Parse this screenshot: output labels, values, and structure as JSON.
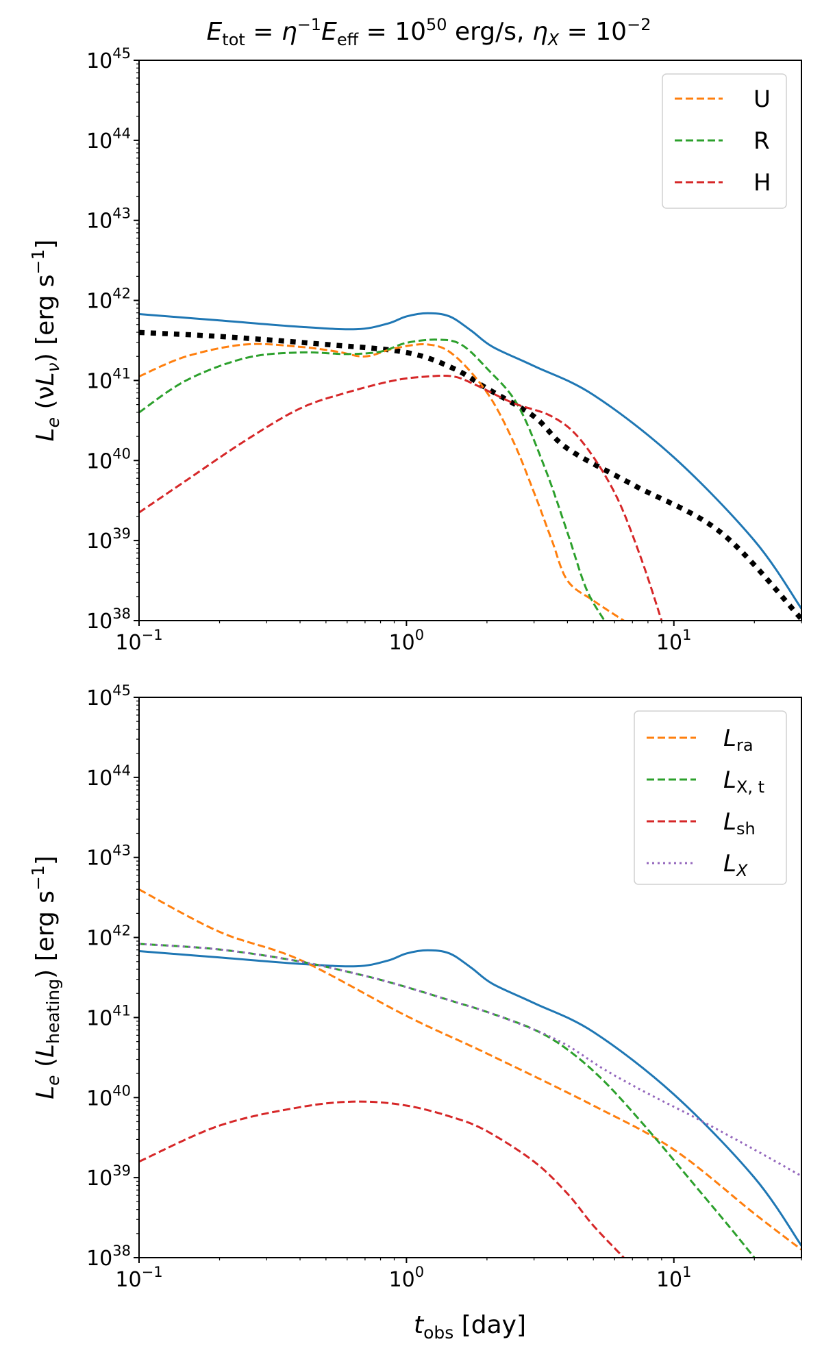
{
  "chart_data": [
    {
      "type": "line",
      "title": "E_tot = η⁻¹E_eff = 10⁵⁰ erg/s,  η_X = 10⁻²",
      "xlabel": "",
      "ylabel": "L_e (νL_ν) [erg s⁻¹]",
      "xscale": "log",
      "yscale": "log",
      "xlim": [
        0.1,
        30
      ],
      "ylim": [
        1e+38,
        1e+45
      ],
      "xticks": [
        {
          "base": "10",
          "exp": "−1",
          "value": 0.1
        },
        {
          "base": "10",
          "exp": "0",
          "value": 1
        },
        {
          "base": "10",
          "exp": "1",
          "value": 10
        }
      ],
      "yticks": [
        {
          "base": "10",
          "exp": "38",
          "value": 38
        },
        {
          "base": "10",
          "exp": "39",
          "value": 39
        },
        {
          "base": "10",
          "exp": "40",
          "value": 40
        },
        {
          "base": "10",
          "exp": "41",
          "value": 41
        },
        {
          "base": "10",
          "exp": "42",
          "value": 42
        },
        {
          "base": "10",
          "exp": "43",
          "value": 43
        },
        {
          "base": "10",
          "exp": "44",
          "value": 44
        },
        {
          "base": "10",
          "exp": "45",
          "value": 45
        }
      ],
      "legend_position": "top-right",
      "series": [
        {
          "name": "total",
          "legend": false,
          "style": "solid",
          "color": "#1f77b4",
          "x": [
            0.1,
            0.2,
            0.4,
            0.65,
            0.85,
            1.0,
            1.2,
            1.45,
            1.75,
            2.1,
            3.0,
            5.0,
            10,
            20,
            30
          ],
          "y": [
            41.83,
            41.75,
            41.67,
            41.64,
            41.71,
            41.8,
            41.84,
            41.8,
            41.62,
            41.42,
            41.18,
            40.82,
            40.04,
            39.0,
            38.15
          ]
        },
        {
          "name": "black",
          "legend": false,
          "style": "dotted-thick",
          "color": "#000000",
          "x": [
            0.1,
            0.2,
            0.5,
            1.0,
            1.5,
            2.0,
            3.0,
            4.0,
            7.0,
            15,
            30
          ],
          "y": [
            41.6,
            41.55,
            41.45,
            41.35,
            41.15,
            40.9,
            40.55,
            40.15,
            39.7,
            39.1,
            38.02
          ]
        },
        {
          "name": "U",
          "legend": true,
          "style": "dashed",
          "color": "#ff7f0e",
          "x": [
            0.1,
            0.15,
            0.25,
            0.4,
            0.55,
            0.7,
            0.9,
            1.2,
            1.5,
            2.0,
            2.5,
            3.0,
            3.5,
            4.0,
            5.0,
            6.5
          ],
          "y": [
            41.05,
            41.3,
            41.45,
            41.42,
            41.36,
            41.3,
            41.4,
            41.45,
            41.32,
            40.85,
            40.25,
            39.6,
            39.0,
            38.5,
            38.25,
            38.0
          ]
        },
        {
          "name": "R",
          "legend": true,
          "style": "dashed",
          "color": "#2ca02c",
          "x": [
            0.1,
            0.15,
            0.25,
            0.4,
            0.6,
            0.8,
            1.0,
            1.3,
            1.6,
            2.0,
            2.6,
            3.3,
            4.0,
            4.7,
            5.5
          ],
          "y": [
            40.6,
            41.0,
            41.28,
            41.35,
            41.33,
            41.36,
            41.47,
            41.51,
            41.45,
            41.15,
            40.7,
            39.9,
            39.1,
            38.4,
            38.0
          ]
        },
        {
          "name": "H",
          "legend": true,
          "style": "dashed",
          "color": "#d62728",
          "x": [
            0.1,
            0.15,
            0.25,
            0.4,
            0.6,
            0.9,
            1.2,
            1.5,
            1.8,
            2.5,
            3.5,
            4.5,
            6.0,
            7.5,
            9.0
          ],
          "y": [
            39.35,
            39.75,
            40.25,
            40.65,
            40.85,
            41.0,
            41.05,
            41.05,
            40.95,
            40.72,
            40.55,
            40.25,
            39.6,
            38.8,
            38.0
          ]
        }
      ]
    },
    {
      "type": "line",
      "title": "",
      "xlabel": "t_obs [day]",
      "ylabel": "L_e (L_heating) [erg s⁻¹]",
      "xscale": "log",
      "yscale": "log",
      "xlim": [
        0.1,
        30
      ],
      "ylim": [
        1e+38,
        1e+45
      ],
      "xticks": [
        {
          "base": "10",
          "exp": "−1",
          "value": 0.1
        },
        {
          "base": "10",
          "exp": "0",
          "value": 1
        },
        {
          "base": "10",
          "exp": "1",
          "value": 10
        }
      ],
      "yticks": [
        {
          "base": "10",
          "exp": "38",
          "value": 38
        },
        {
          "base": "10",
          "exp": "39",
          "value": 39
        },
        {
          "base": "10",
          "exp": "40",
          "value": 40
        },
        {
          "base": "10",
          "exp": "41",
          "value": 41
        },
        {
          "base": "10",
          "exp": "42",
          "value": 42
        },
        {
          "base": "10",
          "exp": "43",
          "value": 43
        },
        {
          "base": "10",
          "exp": "44",
          "value": 44
        },
        {
          "base": "10",
          "exp": "45",
          "value": 45
        }
      ],
      "legend_position": "top-right",
      "series": [
        {
          "name": "total",
          "legend": false,
          "style": "solid",
          "color": "#1f77b4",
          "x": [
            0.1,
            0.2,
            0.4,
            0.65,
            0.85,
            1.0,
            1.2,
            1.45,
            1.75,
            2.1,
            3.0,
            5.0,
            10,
            20,
            30
          ],
          "y": [
            41.83,
            41.75,
            41.67,
            41.64,
            41.71,
            41.8,
            41.84,
            41.8,
            41.62,
            41.42,
            41.18,
            40.82,
            40.04,
            39.0,
            38.15
          ]
        },
        {
          "name": "L_ra",
          "legend": true,
          "style": "dashed",
          "color": "#ff7f0e",
          "x": [
            0.1,
            0.2,
            0.4,
            1.0,
            2.0,
            5.0,
            10,
            20,
            30
          ],
          "y": [
            42.6,
            42.07,
            41.72,
            41.02,
            40.55,
            39.9,
            39.35,
            38.55,
            38.1
          ]
        },
        {
          "name": "L_X,t",
          "legend": true,
          "style": "dashed",
          "color": "#2ca02c",
          "x": [
            0.1,
            0.2,
            0.4,
            0.7,
            1.0,
            1.5,
            2.0,
            3.0,
            4.0,
            5.5,
            8.0,
            12,
            16,
            20
          ],
          "y": [
            41.92,
            41.85,
            41.7,
            41.52,
            41.38,
            41.2,
            41.07,
            40.85,
            40.6,
            40.2,
            39.6,
            38.9,
            38.4,
            38.0
          ]
        },
        {
          "name": "L_sh",
          "legend": true,
          "style": "dashed",
          "color": "#d62728",
          "x": [
            0.1,
            0.2,
            0.4,
            0.65,
            1.0,
            1.5,
            2.0,
            3.0,
            4.0,
            5.0,
            6.5
          ],
          "y": [
            39.2,
            39.65,
            39.88,
            39.95,
            39.9,
            39.75,
            39.58,
            39.2,
            38.8,
            38.4,
            38.0
          ]
        },
        {
          "name": "L_X",
          "legend": true,
          "style": "dotted",
          "color": "#9467bd",
          "x": [
            0.1,
            0.2,
            0.4,
            0.7,
            1.0,
            1.5,
            2.0,
            3.0,
            4.0,
            5.5,
            8.0,
            12,
            20,
            30
          ],
          "y": [
            41.92,
            41.85,
            41.7,
            41.52,
            41.38,
            41.2,
            41.07,
            40.85,
            40.65,
            40.35,
            40.05,
            39.75,
            39.35,
            39.02
          ]
        }
      ]
    }
  ],
  "legend_text": {
    "U": "U",
    "R": "R",
    "H": "H",
    "L_ra": {
      "main": "L",
      "sub": "ra"
    },
    "L_Xt": {
      "main": "L",
      "sub": "X, t"
    },
    "L_sh": {
      "main": "L",
      "sub": "sh"
    },
    "L_X": {
      "main": "L",
      "sub": "X"
    }
  },
  "title_parts": {
    "E": "E",
    "tot": "tot",
    "eq": " = ",
    "eta": "η",
    "minus1": "−1",
    "Eeff": "E",
    "eff": "eff",
    "eq2": " = 10",
    "exp50": "50",
    "units": " erg/s,  ",
    "etaX": "η",
    "X": "X",
    "eq3": " = 10",
    "expm2": "−2"
  },
  "ylabel_top": {
    "L": "L",
    "e": "e",
    "mid": " (ν",
    "L2": "L",
    "nu": "ν",
    "rest": ") [erg s",
    "exp": "−1",
    "end": "]"
  },
  "ylabel_bottom": {
    "L": "L",
    "e": "e",
    "mid": " (",
    "L2": "L",
    "heating": "heating",
    "rest": ") [erg s",
    "exp": "−1",
    "end": "]"
  },
  "xlabel_bottom": {
    "t": "t",
    "obs": "obs",
    "rest": " [day]"
  }
}
